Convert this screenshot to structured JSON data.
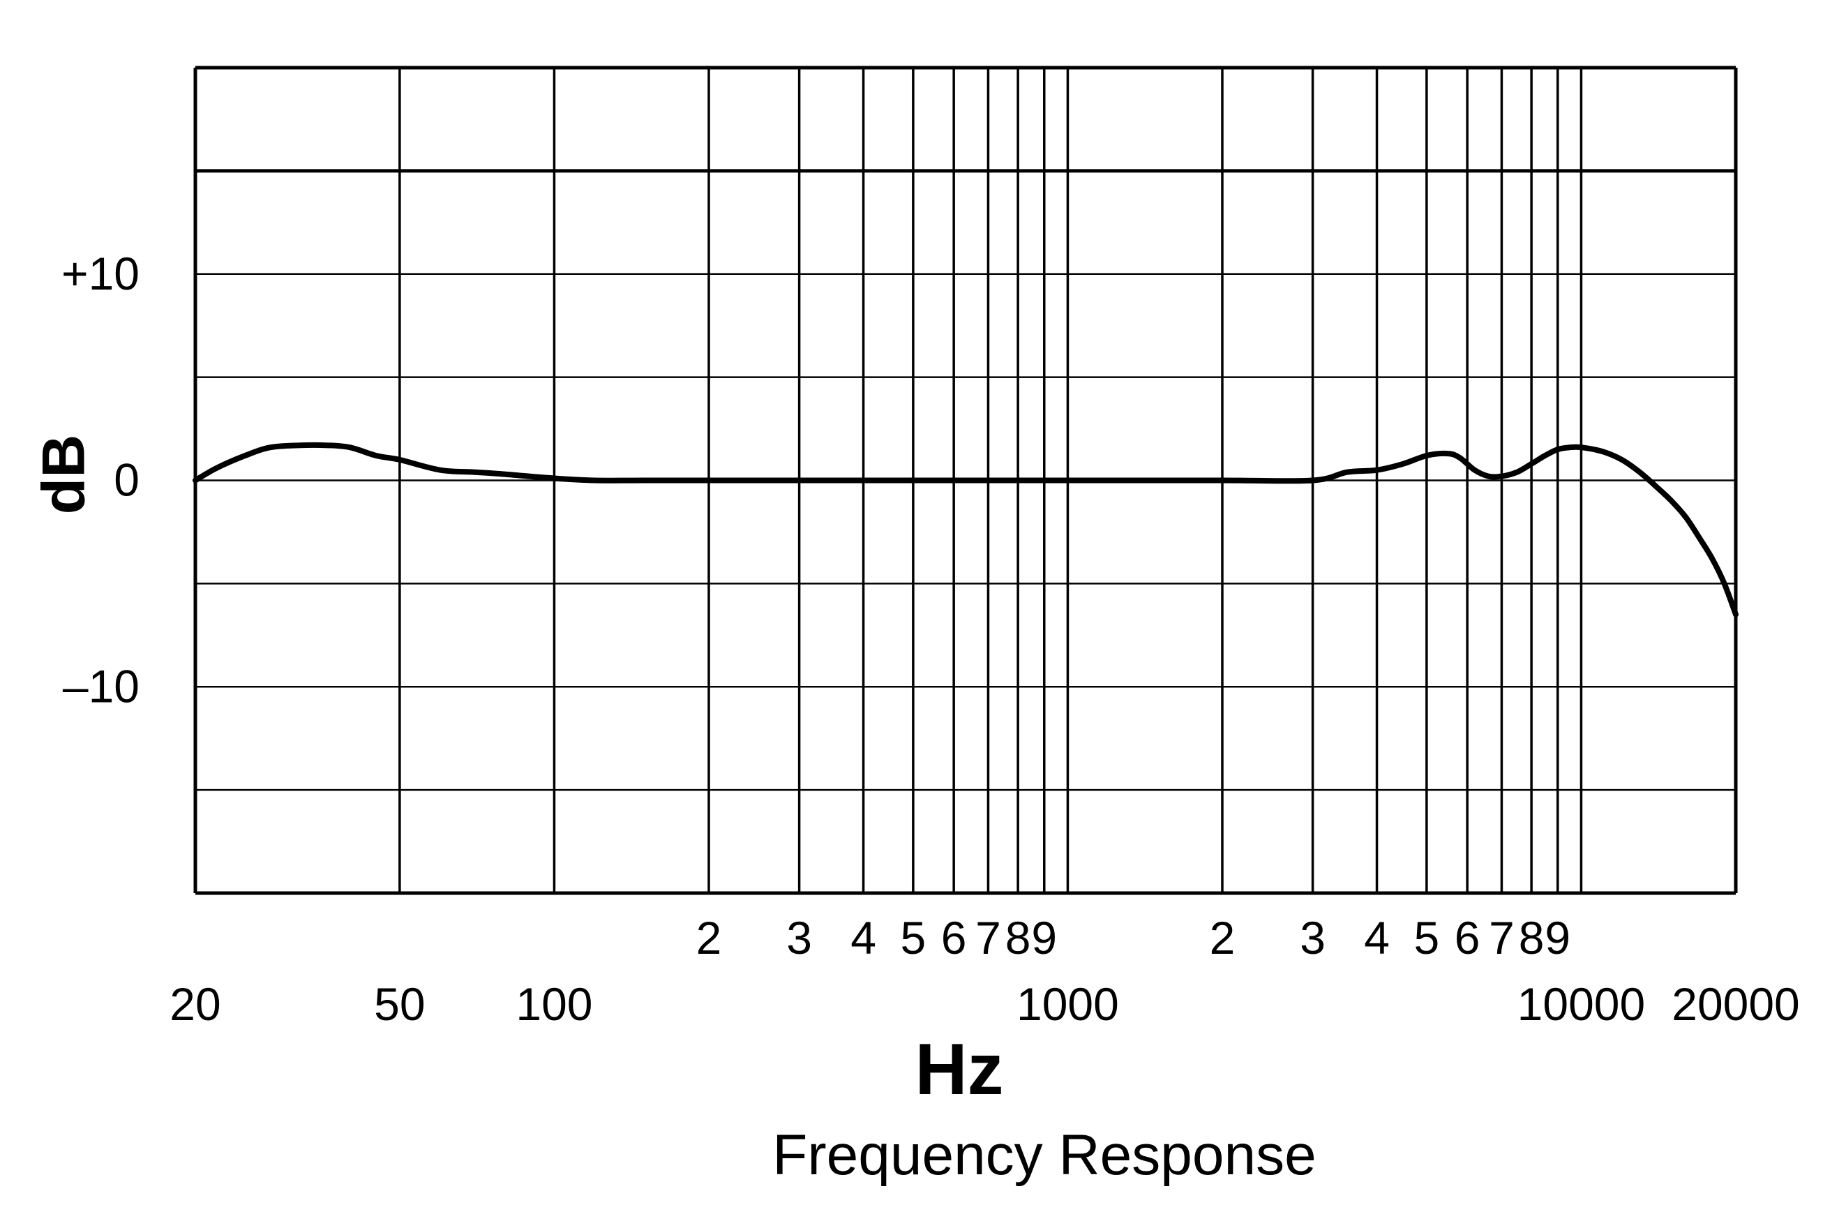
{
  "chart_data": {
    "type": "line",
    "title": "Frequency Response",
    "xlabel": "Hz",
    "ylabel": "dB",
    "x_scale": "log",
    "xlim": [
      20,
      20000
    ],
    "ylim": [
      -20,
      20
    ],
    "grid": true,
    "x_grid_lines": [
      50,
      100,
      200,
      300,
      400,
      500,
      600,
      700,
      800,
      900,
      1000,
      2000,
      3000,
      4000,
      5000,
      6000,
      7000,
      8000,
      9000,
      10000
    ],
    "y_grid_lines": [
      -20,
      -15,
      -10,
      -5,
      0,
      5,
      10,
      15,
      20
    ],
    "y_ticks": [
      {
        "value": 10,
        "label": "+10"
      },
      {
        "value": 0,
        "label": "0"
      },
      {
        "value": -10,
        "label": "–10"
      }
    ],
    "x_ticks_major": [
      {
        "value": 20,
        "label": "20"
      },
      {
        "value": 50,
        "label": "50"
      },
      {
        "value": 100,
        "label": "100"
      },
      {
        "value": 1000,
        "label": "1000"
      },
      {
        "value": 10000,
        "label": "10000"
      },
      {
        "value": 20000,
        "label": "20000"
      }
    ],
    "x_ticks_minor": [
      {
        "value": 200,
        "label": "2"
      },
      {
        "value": 300,
        "label": "3"
      },
      {
        "value": 400,
        "label": "4"
      },
      {
        "value": 500,
        "label": "5"
      },
      {
        "value": 600,
        "label": "6"
      },
      {
        "value": 700,
        "label": "7"
      },
      {
        "value": 800,
        "label": "8"
      },
      {
        "value": 900,
        "label": "9"
      },
      {
        "value": 2000,
        "label": "2"
      },
      {
        "value": 3000,
        "label": "3"
      },
      {
        "value": 4000,
        "label": "4"
      },
      {
        "value": 5000,
        "label": "5"
      },
      {
        "value": 6000,
        "label": "6"
      },
      {
        "value": 7000,
        "label": "7"
      },
      {
        "value": 8000,
        "label": "8"
      },
      {
        "value": 9000,
        "label": "9"
      }
    ],
    "series": [
      {
        "color": "#000000",
        "x": [
          20,
          22,
          25,
          28,
          32,
          36,
          40,
          45,
          50,
          60,
          70,
          80,
          100,
          120,
          150,
          200,
          300,
          500,
          1000,
          2000,
          3000,
          3500,
          4000,
          4500,
          5000,
          5500,
          5800,
          6200,
          6600,
          7000,
          7500,
          8000,
          8500,
          9000,
          9500,
          10000,
          11000,
          12000,
          13000,
          14000,
          15000,
          16000,
          17000,
          18000,
          19000,
          20000
        ],
        "y": [
          0,
          0.6,
          1.2,
          1.6,
          1.7,
          1.7,
          1.6,
          1.2,
          1.0,
          0.5,
          0.4,
          0.3,
          0.1,
          0.0,
          0.0,
          0.0,
          0.0,
          0.0,
          0.0,
          0.0,
          0.0,
          0.4,
          0.5,
          0.8,
          1.2,
          1.3,
          1.1,
          0.5,
          0.2,
          0.2,
          0.4,
          0.8,
          1.2,
          1.5,
          1.6,
          1.6,
          1.4,
          1.0,
          0.4,
          -0.3,
          -1.0,
          -1.8,
          -2.8,
          -3.8,
          -5.0,
          -6.5
        ]
      }
    ]
  }
}
